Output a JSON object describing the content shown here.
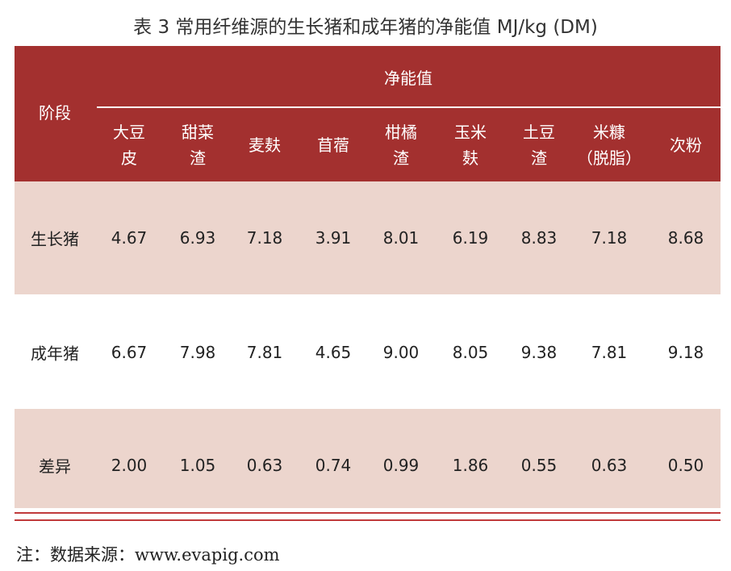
{
  "title": "表 3  常用纤维源的生长猪和成年猪的净能值 MJ/kg (DM)",
  "table": {
    "stage_header": "阶段",
    "group_header": "净能值",
    "columns": [
      [
        "大豆",
        "皮"
      ],
      [
        "甜菜",
        "渣"
      ],
      [
        "麦麸"
      ],
      [
        "苜蓿"
      ],
      [
        "柑橘",
        "渣"
      ],
      [
        "玉米",
        "麸"
      ],
      [
        "土豆",
        "渣"
      ],
      [
        "米糠",
        "（脱脂）"
      ],
      [
        "次粉"
      ]
    ],
    "rows": [
      [
        "生长猪",
        "4.67",
        "6.93",
        "7.18",
        "3.91",
        "8.01",
        "6.19",
        "8.83",
        "7.18",
        "8.68"
      ],
      [
        "成年猪",
        "6.67",
        "7.98",
        "7.81",
        "4.65",
        "9.00",
        "8.05",
        "9.38",
        "7.81",
        "9.18"
      ],
      [
        "差异",
        "2.00",
        "1.05",
        "0.63",
        "0.74",
        "0.99",
        "1.86",
        "0.55",
        "0.63",
        "0.50"
      ]
    ]
  },
  "note": "注：数据来源：www.evapig.com"
}
